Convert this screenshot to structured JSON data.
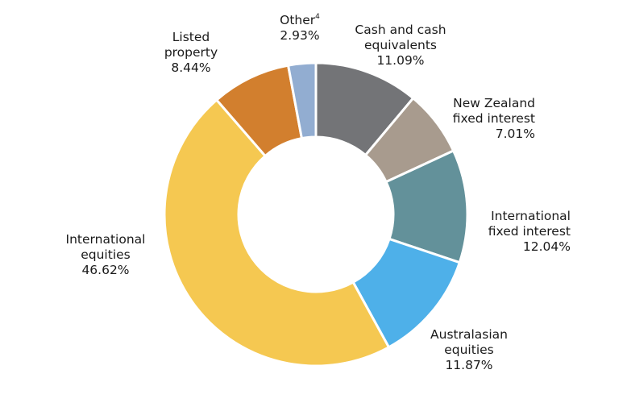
{
  "chart_data": {
    "type": "pie",
    "donut": true,
    "slices": [
      {
        "label": [
          "Cash and cash",
          "equivalents"
        ],
        "value": "11.09%",
        "pct": 11.09,
        "color": "#737477"
      },
      {
        "label": [
          "New Zealand",
          "fixed interest"
        ],
        "value": "7.01%",
        "pct": 7.01,
        "color": "#a89b8e"
      },
      {
        "label": [
          "International",
          "fixed interest"
        ],
        "value": "12.04%",
        "pct": 12.04,
        "color": "#63919a"
      },
      {
        "label": [
          "Australasian",
          "equities"
        ],
        "value": "11.87%",
        "pct": 11.87,
        "color": "#4eb0e9"
      },
      {
        "label": [
          "International",
          "equities"
        ],
        "value": "46.62%",
        "pct": 46.62,
        "color": "#f5c851"
      },
      {
        "label": [
          "Listed",
          "property"
        ],
        "value": "8.44%",
        "pct": 8.44,
        "color": "#d27f2e"
      },
      {
        "label": [
          "Other"
        ],
        "footnote": "4",
        "value": "2.93%",
        "pct": 2.93,
        "color": "#92add1"
      }
    ]
  }
}
